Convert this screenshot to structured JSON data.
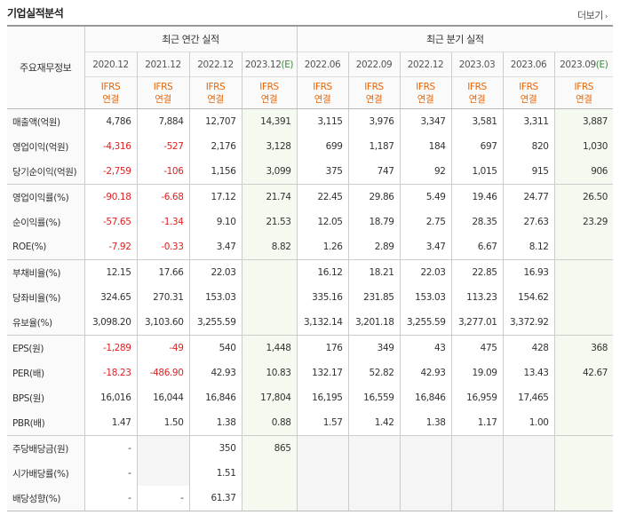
{
  "title": "기업실적분석",
  "more_label": "더보기",
  "header": {
    "group_label": "주요재무정보",
    "annual_title": "최근 연간 실적",
    "quarter_title": "최근 분기 실적",
    "annual_periods": [
      "2020.12",
      "2021.12",
      "2022.12",
      "2023.12"
    ],
    "annual_est_marker": "(E)",
    "quarter_periods": [
      "2022.06",
      "2022.09",
      "2022.12",
      "2023.03",
      "2023.06",
      "2023.09"
    ],
    "quarter_est_marker": "(E)",
    "ifrs_top": "IFRS",
    "ifrs_bottom": "연결"
  },
  "rows": [
    {
      "label": "매출액(억원)",
      "values": [
        "4,786",
        "7,884",
        "12,707",
        "14,391",
        "3,115",
        "3,976",
        "3,347",
        "3,581",
        "3,311",
        "3,887"
      ]
    },
    {
      "label": "영업이익(억원)",
      "values": [
        "-4,316",
        "-527",
        "2,176",
        "3,128",
        "699",
        "1,187",
        "184",
        "697",
        "820",
        "1,030"
      ]
    },
    {
      "label": "당기순이익(억원)",
      "values": [
        "-2,759",
        "-106",
        "1,156",
        "3,099",
        "375",
        "747",
        "92",
        "1,015",
        "915",
        "906"
      ]
    },
    {
      "label": "영업이익률(%)",
      "values": [
        "-90.18",
        "-6.68",
        "17.12",
        "21.74",
        "22.45",
        "29.86",
        "5.49",
        "19.46",
        "24.77",
        "26.50"
      ]
    },
    {
      "label": "순이익률(%)",
      "values": [
        "-57.65",
        "-1.34",
        "9.10",
        "21.53",
        "12.05",
        "18.79",
        "2.75",
        "28.35",
        "27.63",
        "23.29"
      ]
    },
    {
      "label": "ROE(%)",
      "values": [
        "-7.92",
        "-0.33",
        "3.47",
        "8.82",
        "1.26",
        "2.89",
        "3.47",
        "6.67",
        "8.12",
        ""
      ]
    },
    {
      "label": "부채비율(%)",
      "values": [
        "12.15",
        "17.66",
        "22.03",
        "",
        "16.12",
        "18.21",
        "22.03",
        "22.85",
        "16.93",
        ""
      ]
    },
    {
      "label": "당좌비율(%)",
      "values": [
        "324.65",
        "270.31",
        "153.03",
        "",
        "335.16",
        "231.85",
        "153.03",
        "113.23",
        "154.62",
        ""
      ]
    },
    {
      "label": "유보율(%)",
      "values": [
        "3,098.20",
        "3,103.60",
        "3,255.59",
        "",
        "3,132.14",
        "3,201.18",
        "3,255.59",
        "3,277.01",
        "3,372.92",
        ""
      ]
    },
    {
      "label": "EPS(원)",
      "values": [
        "-1,289",
        "-49",
        "540",
        "1,448",
        "176",
        "349",
        "43",
        "475",
        "428",
        "368"
      ]
    },
    {
      "label": "PER(배)",
      "values": [
        "-18.23",
        "-486.90",
        "42.93",
        "10.83",
        "132.17",
        "52.82",
        "42.93",
        "19.09",
        "13.43",
        "42.67"
      ]
    },
    {
      "label": "BPS(원)",
      "values": [
        "16,016",
        "16,044",
        "16,846",
        "17,804",
        "16,195",
        "16,559",
        "16,846",
        "16,959",
        "17,465",
        ""
      ]
    },
    {
      "label": "PBR(배)",
      "values": [
        "1.47",
        "1.50",
        "1.38",
        "0.88",
        "1.57",
        "1.42",
        "1.38",
        "1.17",
        "1.00",
        ""
      ]
    },
    {
      "label": "주당배당금(원)",
      "values": [
        "-",
        "",
        "350",
        "865",
        "",
        "",
        "",
        "",
        "",
        ""
      ]
    },
    {
      "label": "시가배당률(%)",
      "values": [
        "-",
        "",
        "1.51",
        "",
        "",
        "",
        "",
        "",
        "",
        ""
      ]
    },
    {
      "label": "배당성향(%)",
      "values": [
        "-",
        "-",
        "61.37",
        "",
        "",
        "",
        "",
        "",
        "",
        ""
      ]
    }
  ]
}
